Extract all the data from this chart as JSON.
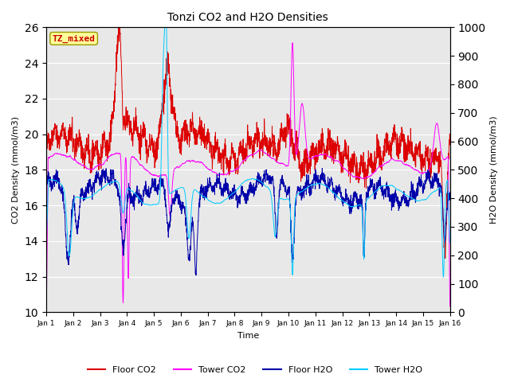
{
  "title": "Tonzi CO2 and H2O Densities",
  "xlabel": "Time",
  "ylabel_left": "CO2 Density (mmol/m3)",
  "ylabel_right": "H2O Density (mmol/m3)",
  "ylim_left": [
    10,
    26
  ],
  "ylim_right": [
    0,
    1000
  ],
  "yticks_left": [
    10,
    12,
    14,
    16,
    18,
    20,
    22,
    24,
    26
  ],
  "yticks_right": [
    0,
    100,
    200,
    300,
    400,
    500,
    600,
    700,
    800,
    900,
    1000
  ],
  "xtick_labels": [
    "Jan 1",
    "Jan 2",
    "Jan 3",
    "Jan 4",
    "Jan 5",
    "Jan 6",
    "Jan 7",
    "Jan 8",
    "Jan 9",
    "Jan 10",
    "Jan 11",
    "Jan 12",
    "Jan 13",
    "Jan 14",
    "Jan 15",
    "Jan 16"
  ],
  "annotation_text": "TZ_mixed",
  "annotation_color": "#cc0000",
  "annotation_bg": "#ffff99",
  "annotation_border": "#999900",
  "colors": {
    "floor_co2": "#dd0000",
    "tower_co2": "#ff00ff",
    "floor_h2o": "#0000aa",
    "tower_h2o": "#00ccff"
  },
  "legend_labels": [
    "Floor CO2",
    "Tower CO2",
    "Floor H2O",
    "Tower H2O"
  ],
  "bg_color": "#e8e8e8",
  "grid_color": "#ffffff",
  "n_points": 2160,
  "seed": 42
}
